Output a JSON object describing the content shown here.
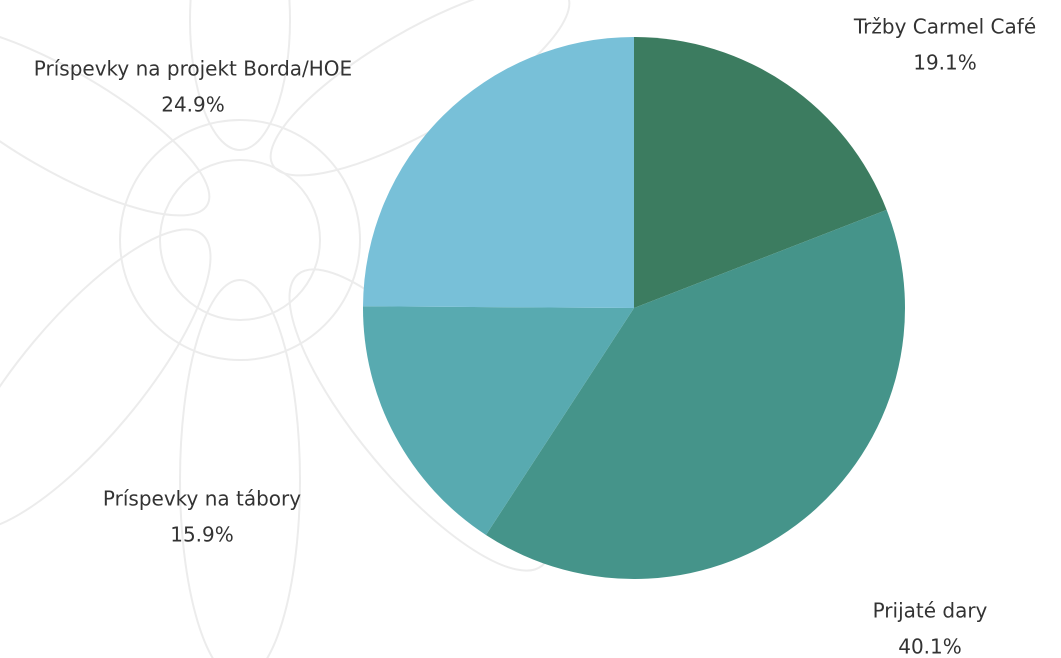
{
  "chart_data": {
    "type": "pie",
    "categories": [
      "Tržby Carmel Café",
      "Prijaté dary",
      "Príspevky na tábory",
      "Príspevky na projekt Borda/HOE"
    ],
    "values": [
      19.1,
      40.1,
      15.9,
      24.9
    ],
    "value_labels": [
      "19.1%",
      "40.1%",
      "15.9%",
      "24.9%"
    ],
    "colors": [
      "#3c7c60",
      "#45948a",
      "#58aab0",
      "#78c0d8"
    ]
  }
}
